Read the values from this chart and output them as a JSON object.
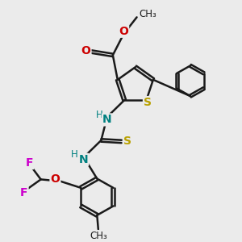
{
  "bg_color": "#ebebeb",
  "bond_color": "#1a1a1a",
  "bond_width": 1.8,
  "S_color": "#b8a000",
  "O_color": "#cc0000",
  "N_color": "#008080",
  "F_color": "#cc00cc",
  "figsize": [
    3.0,
    3.0
  ],
  "dpi": 100,
  "xlim": [
    0,
    10
  ],
  "ylim": [
    0,
    10
  ]
}
